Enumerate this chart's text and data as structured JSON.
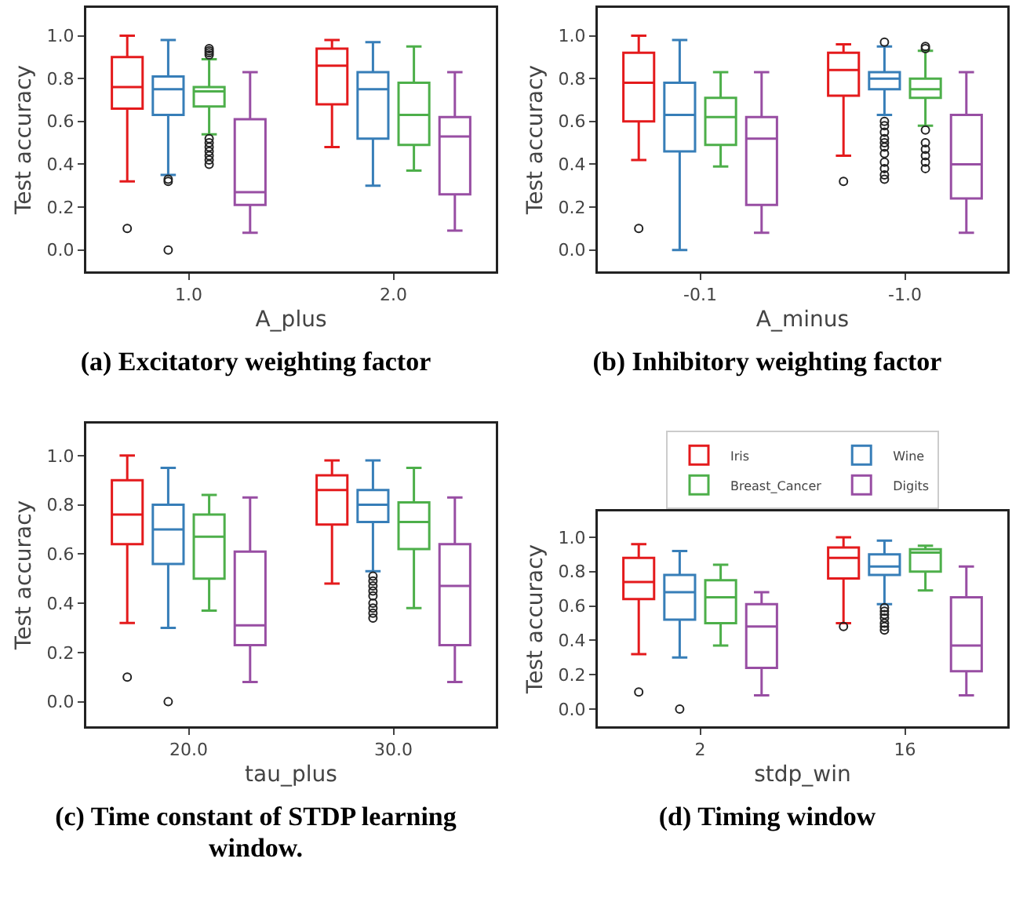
{
  "chart_data": [
    {
      "type": "box",
      "title": "(a) Excitatory weighting factor",
      "xlabel": "A_plus",
      "ylabel": "Test accuracy",
      "categories": [
        "1.0",
        "2.0"
      ],
      "ylim": [
        -0.1,
        1.13
      ],
      "yticks": [
        {
          "value": 0,
          "label": "0.0"
        },
        {
          "value": 0.2,
          "label": "0.2"
        },
        {
          "value": 0.4,
          "label": "0.4"
        },
        {
          "value": 0.6,
          "label": "0.6"
        },
        {
          "value": 0.8,
          "label": "0.8"
        },
        {
          "value": 1,
          "label": "1.0"
        }
      ],
      "grid": false,
      "legend": false,
      "series": [
        {
          "color": "#e41a1c",
          "boxes": [
            {
              "low": 0.32,
              "q1": 0.66,
              "median": 0.76,
              "q3": 0.9,
              "high": 1.0,
              "outliers": [
                0.1
              ]
            },
            {
              "low": 0.48,
              "q1": 0.68,
              "median": 0.86,
              "q3": 0.94,
              "high": 0.98
            }
          ]
        },
        {
          "color": "#377eb8",
          "boxes": [
            {
              "low": 0.35,
              "q1": 0.63,
              "median": 0.75,
              "q3": 0.81,
              "high": 0.98,
              "outliers": [
                0.33,
                0.32,
                0.0
              ]
            },
            {
              "low": 0.3,
              "q1": 0.52,
              "median": 0.75,
              "q3": 0.83,
              "high": 0.97
            }
          ]
        },
        {
          "color": "#4daf4a",
          "boxes": [
            {
              "low": 0.54,
              "q1": 0.67,
              "median": 0.74,
              "q3": 0.76,
              "high": 0.89,
              "outliers": [
                0.94,
                0.93,
                0.92,
                0.91,
                0.52,
                0.5,
                0.48,
                0.46,
                0.44,
                0.42,
                0.4
              ]
            },
            {
              "low": 0.37,
              "q1": 0.49,
              "median": 0.63,
              "q3": 0.78,
              "high": 0.95
            }
          ]
        },
        {
          "color": "#984ea3",
          "boxes": [
            {
              "low": 0.08,
              "q1": 0.21,
              "median": 0.27,
              "q3": 0.61,
              "high": 0.83
            },
            {
              "low": 0.09,
              "q1": 0.26,
              "median": 0.53,
              "q3": 0.62,
              "high": 0.83
            }
          ]
        }
      ]
    },
    {
      "type": "box",
      "title": "(b) Inhibitory weighting factor",
      "xlabel": "A_minus",
      "ylabel": "Test accuracy",
      "categories": [
        "-0.1",
        "-1.0"
      ],
      "ylim": [
        -0.1,
        1.13
      ],
      "yticks": [
        {
          "value": 0,
          "label": "0.0"
        },
        {
          "value": 0.2,
          "label": "0.2"
        },
        {
          "value": 0.4,
          "label": "0.4"
        },
        {
          "value": 0.6,
          "label": "0.6"
        },
        {
          "value": 0.8,
          "label": "0.8"
        },
        {
          "value": 1,
          "label": "1.0"
        }
      ],
      "grid": false,
      "legend": false,
      "series": [
        {
          "color": "#e41a1c",
          "boxes": [
            {
              "low": 0.42,
              "q1": 0.6,
              "median": 0.78,
              "q3": 0.92,
              "high": 1.0,
              "outliers": [
                0.1
              ]
            },
            {
              "low": 0.44,
              "q1": 0.72,
              "median": 0.84,
              "q3": 0.92,
              "high": 0.96,
              "outliers": [
                0.32
              ]
            }
          ]
        },
        {
          "color": "#377eb8",
          "boxes": [
            {
              "low": 0.0,
              "q1": 0.46,
              "median": 0.63,
              "q3": 0.78,
              "high": 0.98
            },
            {
              "low": 0.63,
              "q1": 0.75,
              "median": 0.8,
              "q3": 0.83,
              "high": 0.95,
              "outliers": [
                0.97,
                0.6,
                0.58,
                0.55,
                0.52,
                0.5,
                0.48,
                0.45,
                0.41,
                0.38,
                0.35,
                0.33
              ]
            }
          ]
        },
        {
          "color": "#4daf4a",
          "boxes": [
            {
              "low": 0.39,
              "q1": 0.49,
              "median": 0.62,
              "q3": 0.71,
              "high": 0.83
            },
            {
              "low": 0.58,
              "q1": 0.71,
              "median": 0.75,
              "q3": 0.8,
              "high": 0.93,
              "outliers": [
                0.95,
                0.94,
                0.56,
                0.5,
                0.47,
                0.44,
                0.41,
                0.38
              ]
            }
          ]
        },
        {
          "color": "#984ea3",
          "boxes": [
            {
              "low": 0.08,
              "q1": 0.21,
              "median": 0.52,
              "q3": 0.62,
              "high": 0.83
            },
            {
              "low": 0.08,
              "q1": 0.24,
              "median": 0.4,
              "q3": 0.63,
              "high": 0.83
            }
          ]
        }
      ]
    },
    {
      "type": "box",
      "title": "(c) Time constant of STDP learning window.",
      "xlabel": "tau_plus",
      "ylabel": "Test accuracy",
      "categories": [
        "20.0",
        "30.0"
      ],
      "ylim": [
        -0.1,
        1.13
      ],
      "yticks": [
        {
          "value": 0,
          "label": "0.0"
        },
        {
          "value": 0.2,
          "label": "0.2"
        },
        {
          "value": 0.4,
          "label": "0.4"
        },
        {
          "value": 0.6,
          "label": "0.6"
        },
        {
          "value": 0.8,
          "label": "0.8"
        },
        {
          "value": 1,
          "label": "1.0"
        }
      ],
      "grid": false,
      "legend": false,
      "series": [
        {
          "color": "#e41a1c",
          "boxes": [
            {
              "low": 0.32,
              "q1": 0.64,
              "median": 0.76,
              "q3": 0.9,
              "high": 1.0,
              "outliers": [
                0.1
              ]
            },
            {
              "low": 0.48,
              "q1": 0.72,
              "median": 0.86,
              "q3": 0.92,
              "high": 0.98
            }
          ]
        },
        {
          "color": "#377eb8",
          "boxes": [
            {
              "low": 0.3,
              "q1": 0.56,
              "median": 0.7,
              "q3": 0.8,
              "high": 0.95,
              "outliers": [
                0.0
              ]
            },
            {
              "low": 0.53,
              "q1": 0.73,
              "median": 0.8,
              "q3": 0.86,
              "high": 0.98,
              "outliers": [
                0.51,
                0.49,
                0.47,
                0.45,
                0.43,
                0.4,
                0.38,
                0.36,
                0.34
              ]
            }
          ]
        },
        {
          "color": "#4daf4a",
          "boxes": [
            {
              "low": 0.37,
              "q1": 0.5,
              "median": 0.67,
              "q3": 0.76,
              "high": 0.84
            },
            {
              "low": 0.38,
              "q1": 0.62,
              "median": 0.73,
              "q3": 0.81,
              "high": 0.95
            }
          ]
        },
        {
          "color": "#984ea3",
          "boxes": [
            {
              "low": 0.08,
              "q1": 0.23,
              "median": 0.31,
              "q3": 0.61,
              "high": 0.83
            },
            {
              "low": 0.08,
              "q1": 0.23,
              "median": 0.47,
              "q3": 0.64,
              "high": 0.83
            }
          ]
        }
      ]
    },
    {
      "type": "box",
      "title": "(d) Timing window",
      "xlabel": "stdp_win",
      "ylabel": "Test accuracy",
      "categories": [
        "2",
        "16"
      ],
      "ylim": [
        -0.1,
        1.15
      ],
      "yticks": [
        {
          "value": 0,
          "label": "0.0"
        },
        {
          "value": 0.2,
          "label": "0.2"
        },
        {
          "value": 0.4,
          "label": "0.4"
        },
        {
          "value": 0.6,
          "label": "0.6"
        },
        {
          "value": 0.8,
          "label": "0.8"
        },
        {
          "value": 1,
          "label": "1.0"
        }
      ],
      "grid": false,
      "legend": "top",
      "series": [
        {
          "name": "Iris",
          "color": "#e41a1c",
          "boxes": [
            {
              "low": 0.32,
              "q1": 0.64,
              "median": 0.74,
              "q3": 0.88,
              "high": 0.96,
              "outliers": [
                0.1
              ]
            },
            {
              "low": 0.5,
              "q1": 0.76,
              "median": 0.88,
              "q3": 0.94,
              "high": 1.0,
              "outliers": [
                0.48
              ]
            }
          ]
        },
        {
          "name": "Wine",
          "color": "#377eb8",
          "boxes": [
            {
              "low": 0.3,
              "q1": 0.52,
              "median": 0.68,
              "q3": 0.78,
              "high": 0.92,
              "outliers": [
                0.0
              ]
            },
            {
              "low": 0.61,
              "q1": 0.78,
              "median": 0.83,
              "q3": 0.9,
              "high": 0.98,
              "outliers": [
                0.59,
                0.57,
                0.55,
                0.53,
                0.5,
                0.48,
                0.46
              ]
            }
          ]
        },
        {
          "name": "Breast_Cancer",
          "color": "#4daf4a",
          "boxes": [
            {
              "low": 0.37,
              "q1": 0.5,
              "median": 0.65,
              "q3": 0.75,
              "high": 0.84
            },
            {
              "low": 0.69,
              "q1": 0.8,
              "median": 0.91,
              "q3": 0.93,
              "high": 0.95
            }
          ]
        },
        {
          "name": "Digits",
          "color": "#984ea3",
          "boxes": [
            {
              "low": 0.08,
              "q1": 0.24,
              "median": 0.48,
              "q3": 0.61,
              "high": 0.68
            },
            {
              "low": 0.08,
              "q1": 0.22,
              "median": 0.37,
              "q3": 0.65,
              "high": 0.83
            }
          ]
        }
      ]
    }
  ]
}
